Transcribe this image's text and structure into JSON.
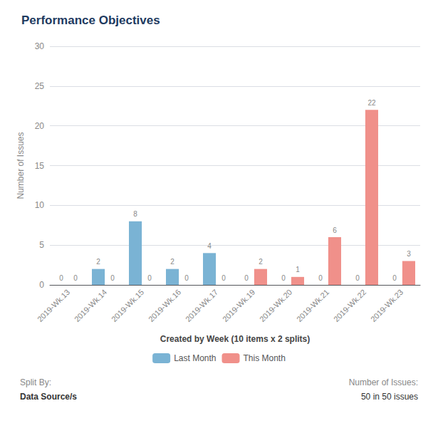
{
  "chart_data": {
    "type": "bar",
    "title": "Performance Objectives",
    "categories": [
      "2019-Wk.13",
      "2019-Wk.14",
      "2019-Wk.15",
      "2019-Wk.16",
      "2019-Wk.17",
      "2019-Wk.19",
      "2019-Wk.20",
      "2019-Wk.21",
      "2019-Wk.22",
      "2019-Wk.23"
    ],
    "series": [
      {
        "name": "Last Month",
        "color": "#7ab3d4",
        "values": [
          0,
          2,
          8,
          2,
          4,
          0,
          0,
          0,
          0,
          0
        ]
      },
      {
        "name": "This Month",
        "color": "#f0908a",
        "values": [
          0,
          0,
          0,
          0,
          0,
          2,
          1,
          6,
          22,
          3
        ]
      }
    ],
    "xlabel": "Created by Week (10 items x 2 splits)",
    "ylabel": "Number of Issues",
    "ylim": [
      0,
      30
    ],
    "yticks": [
      0,
      5,
      10,
      15,
      20,
      25,
      30
    ],
    "grid": true,
    "legend": "bottom",
    "data_labels": true,
    "annotations": [
      "Split By:",
      "Data Source/s",
      "Number of Issues:",
      "50 in 50 issues"
    ]
  }
}
